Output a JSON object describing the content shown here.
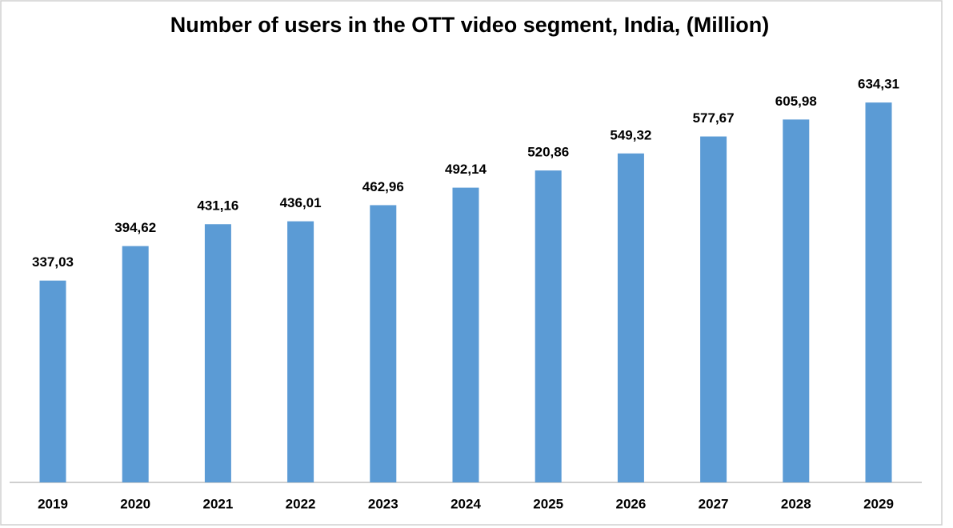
{
  "chart_data": {
    "type": "bar",
    "title": "Number of users in the OTT video segment, India, (Million)",
    "categories": [
      "2019",
      "2020",
      "2021",
      "2022",
      "2023",
      "2024",
      "2025",
      "2026",
      "2027",
      "2028",
      "2029"
    ],
    "values": [
      337.03,
      394.62,
      431.16,
      436.01,
      462.96,
      492.14,
      520.86,
      549.32,
      577.67,
      605.98,
      634.31
    ],
    "value_labels": [
      "337,03",
      "394,62",
      "431,16",
      "436,01",
      "462,96",
      "492,14",
      "520,86",
      "549,32",
      "577,67",
      "605,98",
      "634,31"
    ],
    "color": "#5b9bd5",
    "ylim": [
      0,
      700
    ]
  }
}
